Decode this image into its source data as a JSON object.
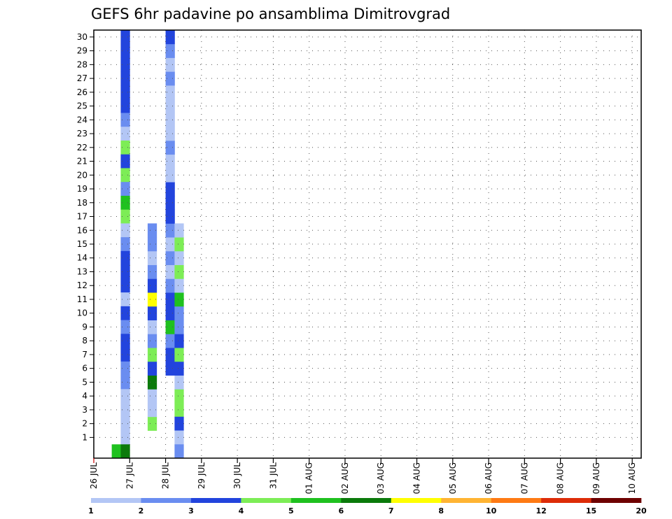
{
  "chart_data": {
    "type": "heatmap",
    "title": "GEFS 6hr padavine po ansamblima Dimitrovgrad",
    "xlabel": "",
    "ylabel": "",
    "y_ticks": [
      1,
      2,
      3,
      4,
      5,
      6,
      7,
      8,
      9,
      10,
      11,
      12,
      13,
      14,
      15,
      16,
      17,
      18,
      19,
      20,
      21,
      22,
      23,
      24,
      25,
      26,
      27,
      28,
      29,
      30
    ],
    "members_min": 0,
    "members_max": 30,
    "x_start": "26 JUL 00z",
    "x_steps_6h": 61,
    "x_tick_labels": [
      "26 JUL",
      "27 JUL",
      "28 JUL",
      "29 JUL",
      "30 JUL",
      "31 JUL",
      "01 AUG",
      "02 AUG",
      "03 AUG",
      "04 AUG",
      "05 AUG",
      "06 AUG",
      "07 AUG",
      "08 AUG",
      "09 AUG",
      "10 AUG"
    ],
    "grid": true,
    "legend_placement": "bottom",
    "legend_boundaries": [
      "1",
      "2",
      "3",
      "4",
      "5",
      "6",
      "7",
      "8",
      "10",
      "12",
      "15",
      "20"
    ],
    "legend_colors": [
      "#b3c6f5",
      "#6a8df0",
      "#2244dd",
      "#7ded56",
      "#1fc11f",
      "#0b7a0b",
      "#ffff00",
      "#ffb433",
      "#fe7a14",
      "#dd2c08",
      "#6e0000"
    ],
    "cells": [
      [
        2,
        0,
        4
      ],
      [
        3,
        30,
        2
      ],
      [
        3,
        29,
        2
      ],
      [
        3,
        28,
        2
      ],
      [
        3,
        27,
        2
      ],
      [
        3,
        26,
        2
      ],
      [
        3,
        25,
        2
      ],
      [
        3,
        24,
        1
      ],
      [
        3,
        23,
        0
      ],
      [
        3,
        22,
        3
      ],
      [
        3,
        21,
        2
      ],
      [
        3,
        20,
        3
      ],
      [
        3,
        19,
        1
      ],
      [
        3,
        18,
        4
      ],
      [
        3,
        17,
        3
      ],
      [
        3,
        16,
        0
      ],
      [
        3,
        15,
        1
      ],
      [
        3,
        14,
        2
      ],
      [
        3,
        13,
        2
      ],
      [
        3,
        12,
        2
      ],
      [
        3,
        11,
        0
      ],
      [
        3,
        10,
        2
      ],
      [
        3,
        9,
        1
      ],
      [
        3,
        8,
        2
      ],
      [
        3,
        7,
        2
      ],
      [
        3,
        6,
        1
      ],
      [
        3,
        5,
        1
      ],
      [
        3,
        4,
        0
      ],
      [
        3,
        3,
        0
      ],
      [
        3,
        2,
        0
      ],
      [
        3,
        1,
        0
      ],
      [
        3,
        0,
        5
      ],
      [
        6,
        2,
        3
      ],
      [
        6,
        3,
        0
      ],
      [
        6,
        4,
        0
      ],
      [
        6,
        5,
        5
      ],
      [
        6,
        6,
        2
      ],
      [
        6,
        7,
        3
      ],
      [
        6,
        8,
        1
      ],
      [
        6,
        9,
        0
      ],
      [
        6,
        10,
        2
      ],
      [
        6,
        11,
        6
      ],
      [
        6,
        12,
        2
      ],
      [
        6,
        13,
        1
      ],
      [
        6,
        14,
        0
      ],
      [
        6,
        15,
        1
      ],
      [
        6,
        16,
        1
      ],
      [
        8,
        6,
        2
      ],
      [
        8,
        7,
        2
      ],
      [
        8,
        8,
        1
      ],
      [
        8,
        9,
        4
      ],
      [
        8,
        10,
        2
      ],
      [
        8,
        11,
        2
      ],
      [
        8,
        12,
        1
      ],
      [
        8,
        13,
        0
      ],
      [
        8,
        14,
        1
      ],
      [
        8,
        15,
        0
      ],
      [
        8,
        16,
        1
      ],
      [
        8,
        17,
        2
      ],
      [
        8,
        18,
        2
      ],
      [
        8,
        19,
        2
      ],
      [
        8,
        20,
        0
      ],
      [
        8,
        21,
        0
      ],
      [
        8,
        22,
        1
      ],
      [
        8,
        23,
        0
      ],
      [
        8,
        24,
        0
      ],
      [
        8,
        25,
        0
      ],
      [
        8,
        26,
        0
      ],
      [
        8,
        27,
        1
      ],
      [
        8,
        28,
        0
      ],
      [
        8,
        29,
        1
      ],
      [
        8,
        30,
        2
      ],
      [
        9,
        4,
        3
      ],
      [
        9,
        3,
        3
      ],
      [
        9,
        2,
        2
      ],
      [
        9,
        1,
        0
      ],
      [
        9,
        0,
        1
      ],
      [
        9,
        5,
        0
      ],
      [
        9,
        6,
        2
      ],
      [
        9,
        7,
        3
      ],
      [
        9,
        8,
        2
      ],
      [
        9,
        9,
        1
      ],
      [
        9,
        10,
        1
      ],
      [
        9,
        11,
        4
      ],
      [
        9,
        12,
        0
      ],
      [
        9,
        13,
        3
      ],
      [
        9,
        14,
        0
      ],
      [
        9,
        15,
        3
      ],
      [
        9,
        16,
        0
      ]
    ]
  }
}
